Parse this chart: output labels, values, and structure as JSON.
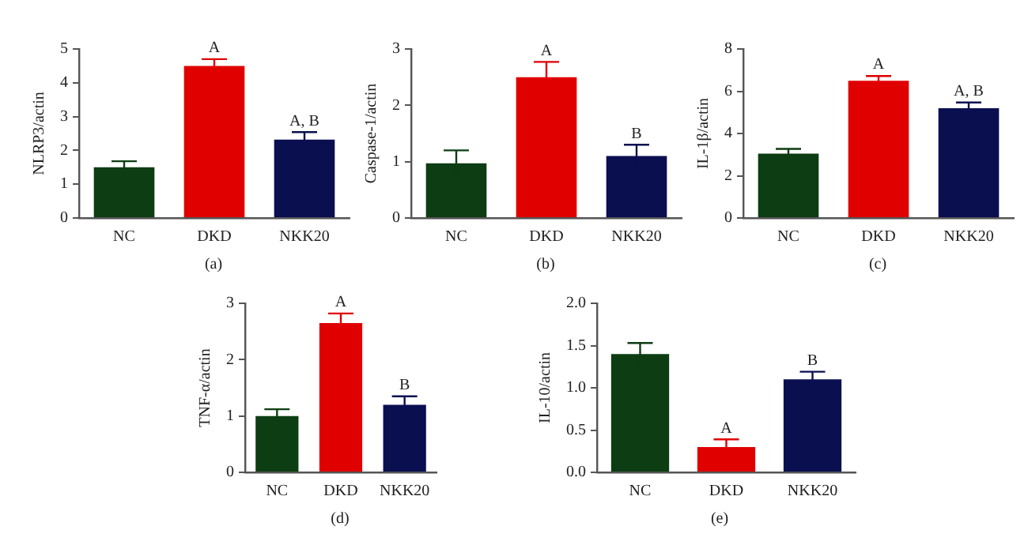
{
  "chart_data": [
    {
      "type": "bar",
      "ylabel": "NLRP3/actin",
      "categories": [
        "NC",
        "DKD",
        "NKK20"
      ],
      "values": [
        1.5,
        4.5,
        2.32
      ],
      "errors": [
        0.18,
        0.2,
        0.22
      ],
      "colors": [
        "#0d3d12",
        "#e00000",
        "#0a0f50"
      ],
      "ylim": [
        0,
        5
      ],
      "yticks": [
        0,
        1,
        2,
        3,
        4,
        5
      ],
      "annotations": [
        {
          "text": "A",
          "x": "DKD",
          "y": 4.7
        },
        {
          "text": "A, B",
          "x": "NKK20",
          "y": 2.54
        },
        "(a)"
      ]
    },
    {
      "type": "bar",
      "ylabel": "Caspase-1/actin",
      "categories": [
        "NC",
        "DKD",
        "NKK20"
      ],
      "values": [
        0.97,
        2.5,
        1.1
      ],
      "errors": [
        0.23,
        0.27,
        0.2
      ],
      "colors": [
        "#0d3d12",
        "#e00000",
        "#0a0f50"
      ],
      "ylim": [
        0,
        3
      ],
      "yticks": [
        0,
        1,
        2,
        3
      ],
      "annotations": [
        {
          "text": "A",
          "x": "DKD",
          "y": 2.77
        },
        {
          "text": "B",
          "x": "NKK20",
          "y": 1.3
        },
        "(b)"
      ]
    },
    {
      "type": "bar",
      "ylabel": "IL-1β/actin",
      "categories": [
        "NC",
        "DKD",
        "NKK20"
      ],
      "values": [
        3.05,
        6.5,
        5.2
      ],
      "errors": [
        0.22,
        0.22,
        0.27
      ],
      "colors": [
        "#0d3d12",
        "#e00000",
        "#0a0f50"
      ],
      "ylim": [
        0,
        8
      ],
      "yticks": [
        0,
        2,
        4,
        6,
        8
      ],
      "annotations": [
        {
          "text": "A",
          "x": "DKD",
          "y": 6.72
        },
        {
          "text": "A, B",
          "x": "NKK20",
          "y": 5.47
        },
        "(c)"
      ]
    },
    {
      "type": "bar",
      "ylabel": "TNF-α/actin",
      "categories": [
        "NC",
        "DKD",
        "NKK20"
      ],
      "values": [
        1.0,
        2.65,
        1.2
      ],
      "errors": [
        0.12,
        0.17,
        0.15
      ],
      "colors": [
        "#0d3d12",
        "#e00000",
        "#0a0f50"
      ],
      "ylim": [
        0,
        3
      ],
      "yticks": [
        0,
        1,
        2,
        3
      ],
      "annotations": [
        {
          "text": "A",
          "x": "DKD",
          "y": 2.82
        },
        {
          "text": "B",
          "x": "NKK20",
          "y": 1.35
        },
        "(d)"
      ]
    },
    {
      "type": "bar",
      "ylabel": "IL-10/actin",
      "categories": [
        "NC",
        "DKD",
        "NKK20"
      ],
      "values": [
        1.4,
        0.3,
        1.1
      ],
      "errors": [
        0.13,
        0.09,
        0.09
      ],
      "colors": [
        "#0d3d12",
        "#e00000",
        "#0a0f50"
      ],
      "ylim": [
        0,
        2
      ],
      "yticks": [
        {
          "value": 0,
          "label": "0.0"
        },
        {
          "value": 0.5,
          "label": "0.5"
        },
        {
          "value": 1,
          "label": "1.0"
        },
        {
          "value": 1.5,
          "label": "1.5"
        },
        {
          "value": 2,
          "label": "2.0"
        }
      ],
      "annotations": [
        {
          "text": "A",
          "x": "DKD",
          "y": 0.39
        },
        {
          "text": "B",
          "x": "NKK20",
          "y": 1.19
        },
        "(e)"
      ]
    }
  ]
}
